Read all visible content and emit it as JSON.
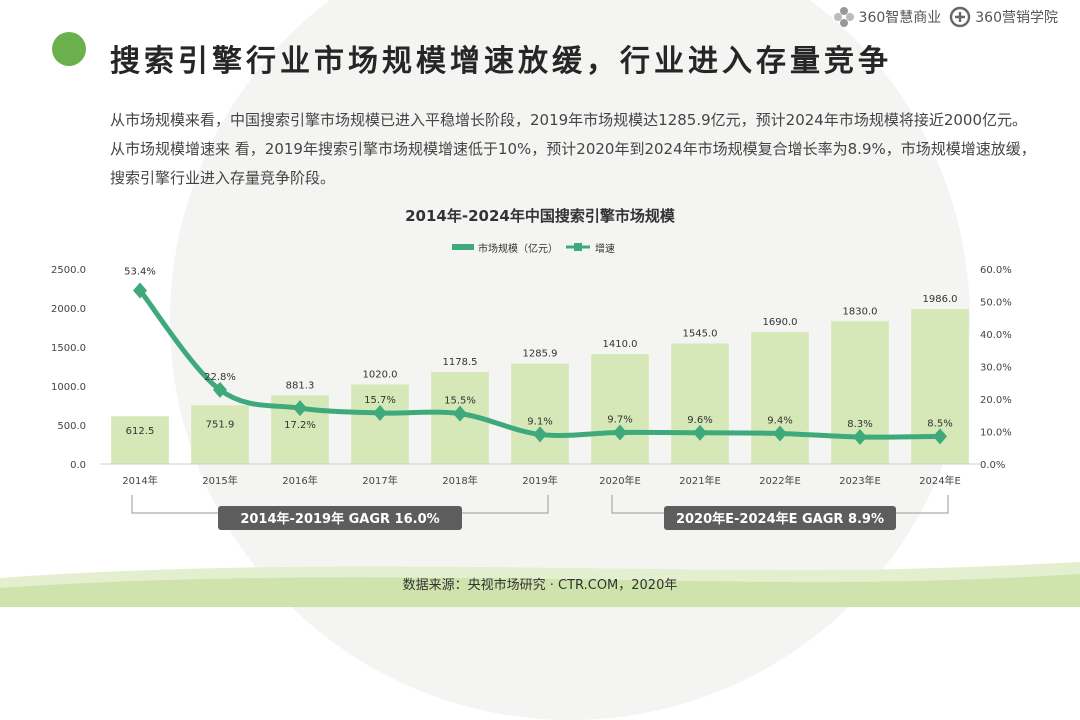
{
  "header": {
    "title": "搜索引擎行业市场规模增速放缓，行业进入存量竞争",
    "logos": [
      "360智慧商业",
      "360营销学院"
    ]
  },
  "intro": {
    "text": "从市场规模来看，中国搜索引擎市场规模已进入平稳增长阶段，2019年市场规模达1285.9亿元，预计2024年市场规模将接近2000亿元。从市场规模增速来 看，2019年搜索引擎市场规模增速低于10%，预计2020年到2024年市场规模复合增长率为8.9%，市场规模增速放缓，搜索引擎行业进入存量竞争阶段。"
  },
  "chart_data": {
    "type": "bar",
    "title": "2014年-2024年中国搜索引擎市场规模",
    "categories": [
      "2014年",
      "2015年",
      "2016年",
      "2017年",
      "2018年",
      "2019年",
      "2020年E",
      "2021年E",
      "2022年E",
      "2023年E",
      "2024年E"
    ],
    "series": [
      {
        "name": "市场规模（亿元）",
        "type": "bar",
        "axis": "left",
        "values": [
          612.5,
          751.9,
          881.3,
          1020.0,
          1178.5,
          1285.9,
          1410.0,
          1545.0,
          1690.0,
          1830.0,
          1986.0
        ],
        "labels": [
          "612.5",
          "751.9",
          "881.3",
          "1020.0",
          "1178.5",
          "1285.9",
          "1410.0",
          "1545.0",
          "1690.0",
          "1830.0",
          "1986.0"
        ]
      },
      {
        "name": "增速",
        "type": "line",
        "axis": "right",
        "values": [
          53.4,
          22.8,
          17.2,
          15.7,
          15.5,
          9.1,
          9.7,
          9.6,
          9.4,
          8.3,
          8.5
        ],
        "labels": [
          "53.4%",
          "22.8%",
          "17.2%",
          "15.7%",
          "15.5%",
          "9.1%",
          "9.7%",
          "9.6%",
          "9.4%",
          "8.3%",
          "8.5%"
        ]
      }
    ],
    "left_axis": {
      "ylim": [
        0,
        2500
      ],
      "ticks": [
        "0.0",
        "500.0",
        "1000.0",
        "1500.0",
        "2000.0",
        "2500.0"
      ]
    },
    "right_axis": {
      "ylim": [
        0,
        60
      ],
      "ticks": [
        "0.0%",
        "10.0%",
        "20.0%",
        "30.0%",
        "40.0%",
        "50.0%",
        "60.0%"
      ]
    },
    "legend_position": "top",
    "grid": false,
    "colors": {
      "bar": "#d6e8b8",
      "line": "#3ea97a",
      "badge": "#5d5d5d"
    },
    "annotations": [
      {
        "text": "2014年-2019年 GAGR 16.0%",
        "span": [
          "2014年",
          "2019年"
        ]
      },
      {
        "text": "2020年E-2024年E GAGR 8.9%",
        "span": [
          "2020年E",
          "2024年E"
        ]
      }
    ]
  },
  "footer": {
    "source": "数据来源：央视市场研究 · CTR.COM，2020年"
  }
}
